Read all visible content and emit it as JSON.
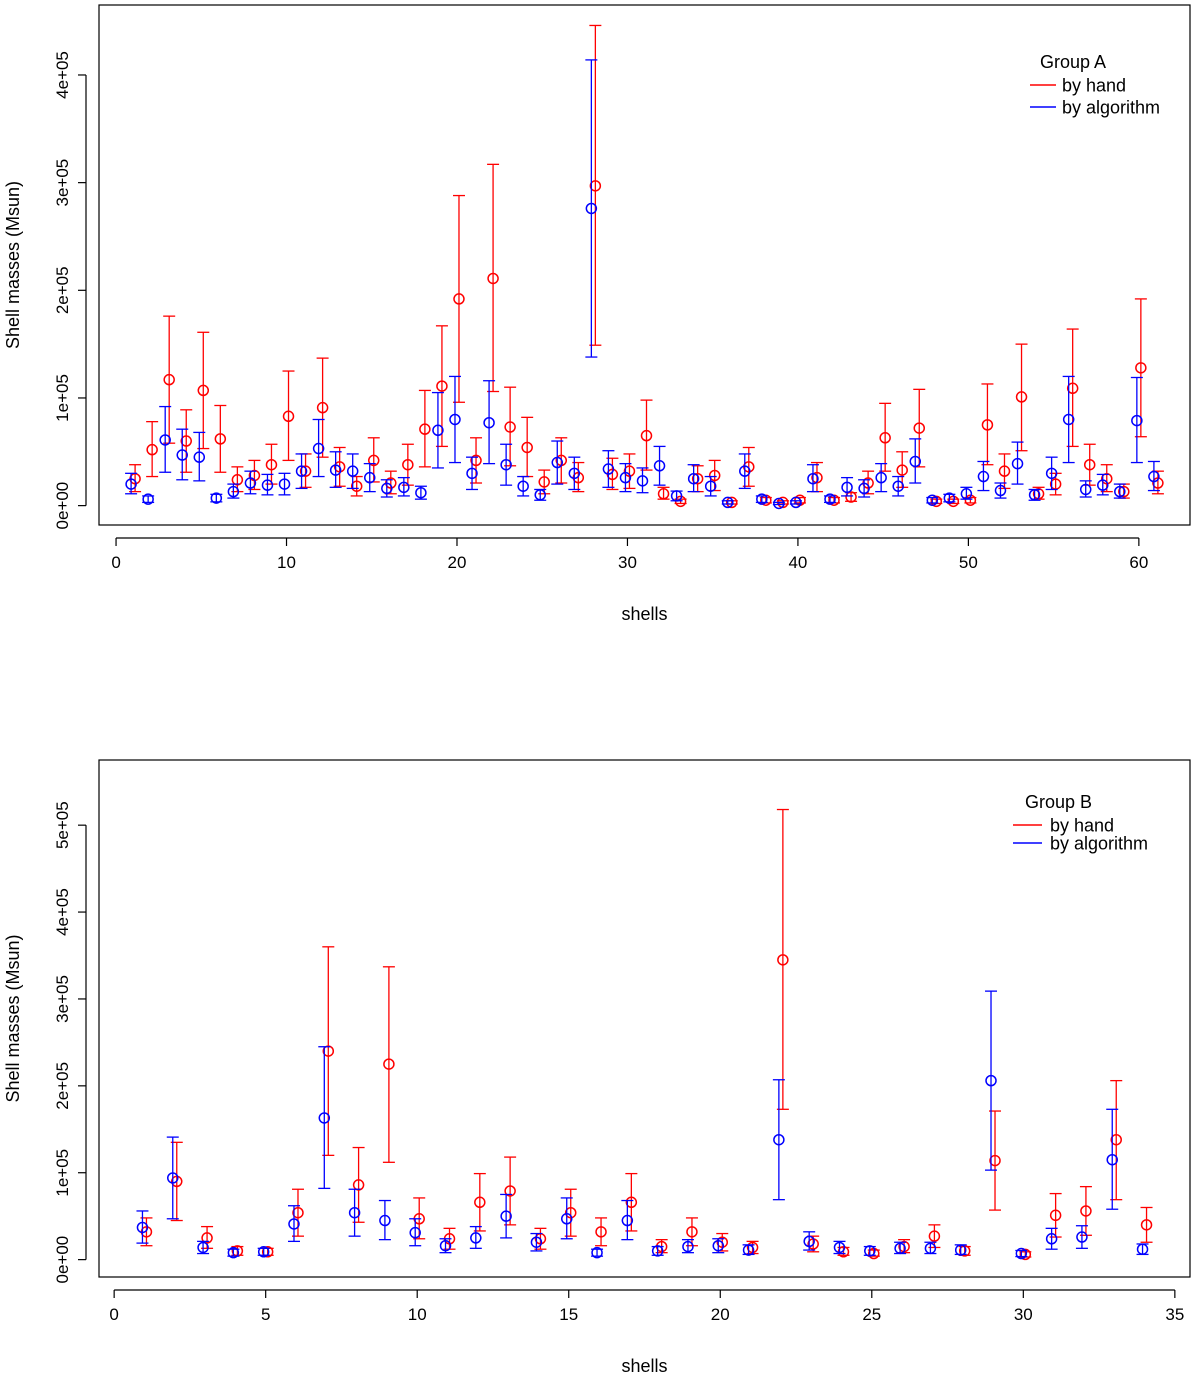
{
  "chart_data": [
    {
      "type": "scatter",
      "subtype": "points-with-error-bars",
      "title": "",
      "xlabel": "shells",
      "ylabel": "Shell masses (Msun)",
      "xlim": [
        -1,
        63
      ],
      "ylim": [
        -18000,
        465000
      ],
      "xticks": [
        0,
        10,
        20,
        30,
        40,
        50,
        60
      ],
      "yticks": [
        0,
        100000,
        200000,
        300000,
        400000
      ],
      "ytick_labels": [
        "0e+00",
        "1e+05",
        "2e+05",
        "3e+05",
        "4e+05"
      ],
      "legend": {
        "title": "Group A",
        "position": "top-right",
        "entries": [
          {
            "label": "by hand",
            "color": "#ff0000"
          },
          {
            "label": "by algorithm",
            "color": "#0000ff"
          }
        ]
      },
      "series": [
        {
          "name": "by hand",
          "color": "#ff0000",
          "x": [
            1,
            2,
            3,
            4,
            5,
            6,
            7,
            8,
            9,
            10,
            11,
            12,
            13,
            14,
            15,
            16,
            17,
            18,
            19,
            20,
            21,
            22,
            23,
            24,
            25,
            26,
            27,
            28,
            29,
            30,
            31,
            32,
            33,
            34,
            35,
            36,
            37,
            38,
            39,
            40,
            41,
            42,
            43,
            44,
            45,
            46,
            47,
            48,
            49,
            50,
            51,
            52,
            53,
            54,
            55,
            56,
            57,
            58,
            59,
            60,
            61
          ],
          "y": [
            25000,
            52000,
            117000,
            60000,
            107000,
            62000,
            24000,
            28000,
            38000,
            83000,
            32000,
            91000,
            36000,
            18000,
            42000,
            21000,
            38000,
            71000,
            111000,
            192000,
            42000,
            211000,
            73000,
            54000,
            22000,
            42000,
            26000,
            297000,
            29000,
            32000,
            65000,
            11000,
            4000,
            25000,
            28000,
            3000,
            36000,
            5000,
            3000,
            5000,
            26000,
            5000,
            8000,
            21000,
            63000,
            33000,
            72000,
            4000,
            4000,
            5000,
            75000,
            32000,
            101000,
            11000,
            20000,
            109000,
            38000,
            25000,
            13000,
            128000,
            21000
          ],
          "lo": [
            13000,
            27000,
            58000,
            31000,
            53000,
            31000,
            13000,
            15000,
            20000,
            42000,
            17000,
            45000,
            18000,
            9000,
            22000,
            11000,
            19000,
            36000,
            55000,
            96000,
            21000,
            106000,
            37000,
            27000,
            11000,
            21000,
            13000,
            149000,
            15000,
            16000,
            33000,
            6000,
            2000,
            13000,
            14000,
            1500,
            18000,
            2500,
            1500,
            2500,
            13000,
            2500,
            4000,
            11000,
            32000,
            17000,
            36000,
            2000,
            2000,
            2500,
            38000,
            16000,
            51000,
            6000,
            10000,
            55000,
            19000,
            13000,
            7000,
            64000,
            11000
          ],
          "hi": [
            38000,
            78000,
            176000,
            89000,
            161000,
            93000,
            36000,
            42000,
            57000,
            125000,
            48000,
            137000,
            54000,
            27000,
            63000,
            32000,
            57000,
            107000,
            167000,
            288000,
            63000,
            317000,
            110000,
            82000,
            33000,
            63000,
            40000,
            446000,
            44000,
            48000,
            98000,
            17000,
            6000,
            37000,
            42000,
            4500,
            54000,
            7500,
            4500,
            7500,
            40000,
            7500,
            12000,
            32000,
            95000,
            50000,
            108000,
            6000,
            6000,
            7500,
            113000,
            48000,
            150000,
            17000,
            30000,
            164000,
            57000,
            38000,
            20000,
            192000,
            32000
          ]
        },
        {
          "name": "by algorithm",
          "color": "#0000ff",
          "x": [
            1,
            2,
            3,
            4,
            5,
            6,
            7,
            8,
            9,
            10,
            11,
            12,
            13,
            14,
            15,
            16,
            17,
            18,
            19,
            20,
            21,
            22,
            23,
            24,
            25,
            26,
            27,
            28,
            29,
            30,
            31,
            32,
            33,
            34,
            35,
            36,
            37,
            38,
            39,
            40,
            41,
            42,
            43,
            44,
            45,
            46,
            47,
            48,
            49,
            50,
            51,
            52,
            53,
            54,
            55,
            56,
            57,
            58,
            59,
            60,
            61
          ],
          "y": [
            20000,
            6000,
            61000,
            47000,
            45000,
            7000,
            13000,
            21000,
            19000,
            20000,
            32000,
            53000,
            33000,
            32000,
            26000,
            16000,
            17000,
            12000,
            70000,
            80000,
            30000,
            77000,
            38000,
            18000,
            10000,
            40000,
            30000,
            276000,
            34000,
            26000,
            23000,
            37000,
            9000,
            25000,
            18000,
            3000,
            32000,
            6000,
            2000,
            3000,
            25000,
            6000,
            17000,
            16000,
            26000,
            18000,
            41000,
            5000,
            7000,
            11000,
            27000,
            14000,
            39000,
            10000,
            30000,
            80000,
            15000,
            19000,
            13000,
            79000,
            27000
          ],
          "lo": [
            11000,
            3000,
            31000,
            24000,
            23000,
            3500,
            7000,
            11000,
            10000,
            10000,
            16000,
            27000,
            17000,
            16000,
            13000,
            8000,
            9000,
            6000,
            35000,
            40000,
            15000,
            39000,
            19000,
            9000,
            5000,
            20000,
            15000,
            138000,
            17000,
            13000,
            12000,
            19000,
            4500,
            13000,
            9000,
            1500,
            16000,
            3000,
            1000,
            1500,
            13000,
            3000,
            9000,
            8000,
            13000,
            9000,
            21000,
            2500,
            3500,
            6000,
            14000,
            7000,
            20000,
            5000,
            15000,
            40000,
            8000,
            10000,
            7000,
            40000,
            14000
          ],
          "hi": [
            30000,
            9000,
            92000,
            71000,
            68000,
            10500,
            20000,
            32000,
            29000,
            30000,
            48000,
            80000,
            50000,
            48000,
            39000,
            24000,
            26000,
            18000,
            105000,
            120000,
            45000,
            116000,
            57000,
            27000,
            15000,
            60000,
            45000,
            414000,
            51000,
            39000,
            35000,
            55000,
            13500,
            38000,
            27000,
            4500,
            48000,
            9000,
            3000,
            4500,
            38000,
            9000,
            26000,
            24000,
            39000,
            27000,
            62000,
            7500,
            10500,
            17000,
            41000,
            21000,
            59000,
            15000,
            45000,
            120000,
            23000,
            29000,
            20000,
            119000,
            41000
          ]
        }
      ]
    },
    {
      "type": "scatter",
      "subtype": "points-with-error-bars",
      "title": "",
      "xlabel": "shells",
      "ylabel": "Shell masses (Msun)",
      "xlim": [
        -0.5,
        35.5
      ],
      "ylim": [
        -20000,
        575000
      ],
      "xticks": [
        0,
        5,
        10,
        15,
        20,
        25,
        30,
        35
      ],
      "yticks": [
        0,
        100000,
        200000,
        300000,
        400000,
        500000
      ],
      "ytick_labels": [
        "0e+00",
        "1e+05",
        "2e+05",
        "3e+05",
        "4e+05",
        "5e+05"
      ],
      "legend": {
        "title": "Group B",
        "position": "top-right",
        "entries": [
          {
            "label": "by hand",
            "color": "#ff0000"
          },
          {
            "label": "by algorithm",
            "color": "#0000ff"
          }
        ]
      },
      "series": [
        {
          "name": "by hand",
          "color": "#ff0000",
          "x": [
            1,
            2,
            3,
            4,
            5,
            6,
            7,
            8,
            9,
            10,
            11,
            12,
            13,
            14,
            15,
            16,
            17,
            18,
            19,
            20,
            21,
            22,
            23,
            24,
            25,
            26,
            27,
            28,
            29,
            30,
            31,
            32,
            33,
            34
          ],
          "y": [
            32000,
            90000,
            25000,
            10000,
            9000,
            54000,
            240000,
            86000,
            225000,
            47000,
            24000,
            66000,
            79000,
            24000,
            54000,
            32000,
            66000,
            15000,
            32000,
            20000,
            14000,
            345000,
            18000,
            9000,
            7000,
            15000,
            27000,
            10000,
            114000,
            6000,
            51000,
            56000,
            138000,
            40000
          ],
          "lo": [
            16000,
            45000,
            13000,
            5000,
            5000,
            27000,
            120000,
            43000,
            112000,
            24000,
            12000,
            33000,
            40000,
            12000,
            27000,
            16000,
            33000,
            8000,
            16000,
            10000,
            7000,
            173000,
            9000,
            5000,
            4000,
            8000,
            14000,
            5000,
            57000,
            3000,
            26000,
            28000,
            69000,
            20000
          ],
          "hi": [
            48000,
            135000,
            38000,
            15000,
            13000,
            81000,
            360000,
            129000,
            337000,
            71000,
            36000,
            99000,
            118000,
            36000,
            81000,
            48000,
            99000,
            23000,
            48000,
            30000,
            21000,
            518000,
            27000,
            14000,
            11000,
            23000,
            40000,
            15000,
            171000,
            9000,
            76000,
            84000,
            206000,
            60000
          ]
        },
        {
          "name": "by algorithm",
          "color": "#0000ff",
          "x": [
            1,
            2,
            3,
            4,
            5,
            6,
            7,
            8,
            9,
            10,
            11,
            12,
            13,
            14,
            15,
            16,
            17,
            18,
            19,
            20,
            21,
            22,
            23,
            24,
            25,
            26,
            27,
            28,
            29,
            30,
            31,
            32,
            33,
            34
          ],
          "y": [
            37000,
            94000,
            14000,
            8000,
            9000,
            41000,
            163000,
            54000,
            45000,
            31000,
            16000,
            25000,
            50000,
            20000,
            47000,
            8000,
            45000,
            10000,
            15000,
            16000,
            11000,
            138000,
            21000,
            14000,
            10000,
            13000,
            13000,
            11000,
            206000,
            7000,
            24000,
            26000,
            115000,
            12000
          ],
          "lo": [
            19000,
            47000,
            7000,
            4000,
            5000,
            21000,
            82000,
            27000,
            23000,
            16000,
            8000,
            13000,
            25000,
            10000,
            24000,
            4000,
            23000,
            5000,
            8000,
            8000,
            6000,
            69000,
            11000,
            7000,
            5000,
            7000,
            7000,
            6000,
            103000,
            3500,
            12000,
            13000,
            58000,
            6000
          ],
          "hi": [
            56000,
            141000,
            21000,
            12000,
            13000,
            62000,
            245000,
            81000,
            68000,
            47000,
            24000,
            38000,
            75000,
            30000,
            71000,
            12000,
            68000,
            15000,
            23000,
            24000,
            17000,
            207000,
            32000,
            21000,
            15000,
            20000,
            20000,
            17000,
            309000,
            10500,
            36000,
            39000,
            173000,
            18000
          ]
        }
      ]
    }
  ]
}
